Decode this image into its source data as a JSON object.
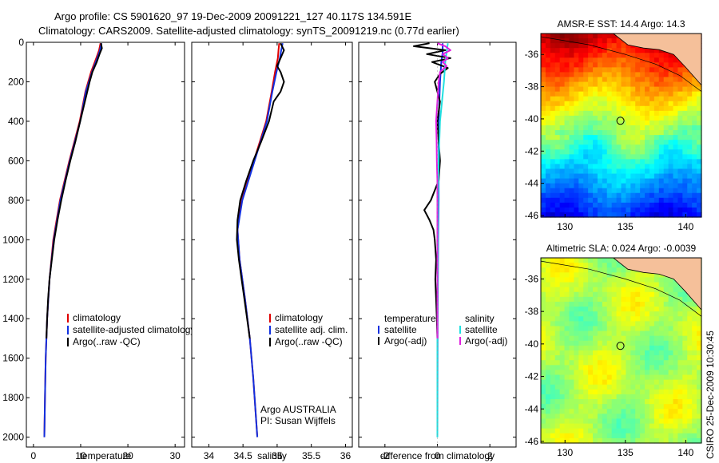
{
  "figure": {
    "title_line1": "Argo profile: CS 5901620_97 19-Dec-2009 20091221_127 40.117S 134.591E",
    "title_line2": "Climatology: CARS2009. Satellite-adjusted climatology: synTS_20091219.nc (0.77d earlier)",
    "side_label": "CSIRO 25-Dec-2009 10:30:45"
  },
  "colors": {
    "climatology": "#e00000",
    "satellite": "#1030e0",
    "argo": "#000000",
    "salinity_sat": "#20e0e0",
    "salinity_argo": "#e020e0",
    "land": "#f5c09a",
    "marker": "#000000"
  },
  "chart_data": [
    {
      "id": "temperature",
      "type": "line",
      "xlabel": "temperature",
      "xlim": [
        -1.5,
        32
      ],
      "ylim": [
        0,
        2050
      ],
      "y_inverted": true,
      "xticks": [
        0,
        10,
        20,
        30
      ],
      "yticks": [
        0,
        200,
        400,
        600,
        800,
        1000,
        1200,
        1400,
        1600,
        1800,
        2000
      ],
      "legend": {
        "position": "lower-middle",
        "entries": [
          "climatology",
          "satellite-adjusted climatology",
          "Argo(..raw -QC)"
        ],
        "colors": [
          "#e00000",
          "#1030e0",
          "#000000"
        ]
      },
      "series": [
        {
          "name": "climatology",
          "color": "#e00000",
          "depth": [
            5,
            40,
            80,
            150,
            250,
            400,
            600,
            800,
            1000,
            1200,
            1400,
            1600,
            1800,
            2000
          ],
          "values": [
            14.2,
            13.9,
            13.3,
            12.2,
            11.0,
            9.8,
            7.6,
            5.6,
            4.2,
            3.4,
            2.9,
            2.6,
            2.45,
            2.3
          ]
        },
        {
          "name": "satellite-adjusted climatology",
          "color": "#1030e0",
          "depth": [
            5,
            40,
            80,
            150,
            250,
            400,
            600,
            800,
            1000,
            1200,
            1400,
            1600,
            1800,
            2000
          ],
          "values": [
            14.4,
            14.1,
            13.5,
            12.4,
            11.1,
            9.9,
            7.7,
            5.7,
            4.3,
            3.4,
            2.9,
            2.6,
            2.45,
            2.3
          ]
        },
        {
          "name": "Argo(..raw -QC)",
          "color": "#000000",
          "depth": [
            5,
            30,
            60,
            100,
            150,
            200,
            300,
            400,
            500,
            600,
            700,
            800,
            900,
            1000,
            1100,
            1200,
            1300,
            1400,
            1500
          ],
          "values": [
            14.3,
            14.5,
            14.0,
            13.4,
            12.5,
            11.9,
            10.9,
            9.9,
            8.9,
            7.8,
            6.8,
            5.9,
            5.1,
            4.4,
            3.9,
            3.4,
            3.1,
            2.9,
            2.75
          ]
        }
      ]
    },
    {
      "id": "salinity",
      "type": "line",
      "xlabel": "salinity",
      "xlim": [
        33.75,
        36.1
      ],
      "ylim": [
        0,
        2050
      ],
      "y_inverted": true,
      "xticks": [
        34,
        34.5,
        35,
        35.5,
        36
      ],
      "xticklabels": [
        "34",
        "34.5",
        "35",
        "35.5",
        "36"
      ],
      "legend": {
        "position": "lower-middle",
        "entries": [
          "climatology",
          "satellite adj. clim.",
          "Argo(..raw -QC)"
        ],
        "colors": [
          "#e00000",
          "#1030e0",
          "#000000"
        ]
      },
      "annotation": [
        "Argo AUSTRALIA",
        "PI: Susan Wijffels"
      ],
      "series": [
        {
          "name": "climatology",
          "color": "#e00000",
          "depth": [
            5,
            40,
            80,
            150,
            250,
            400,
            600,
            800,
            950,
            1100,
            1300,
            1500,
            1700,
            1900,
            2000
          ],
          "values": [
            35.03,
            35.02,
            35.01,
            34.97,
            34.92,
            34.84,
            34.66,
            34.48,
            34.42,
            34.45,
            34.53,
            34.6,
            34.65,
            34.69,
            34.71
          ]
        },
        {
          "name": "satellite adj. clim.",
          "color": "#1030e0",
          "depth": [
            5,
            40,
            80,
            150,
            250,
            400,
            600,
            800,
            950,
            1100,
            1300,
            1500,
            1700,
            1900,
            2000
          ],
          "values": [
            35.08,
            35.06,
            35.04,
            34.99,
            34.93,
            34.85,
            34.67,
            34.49,
            34.42,
            34.45,
            34.53,
            34.6,
            34.65,
            34.69,
            34.71
          ]
        },
        {
          "name": "Argo(..raw -QC)",
          "color": "#000000",
          "depth": [
            5,
            40,
            80,
            120,
            150,
            200,
            250,
            300,
            400,
            500,
            600,
            700,
            800,
            900,
            1000,
            1100,
            1200,
            1300,
            1400,
            1500
          ],
          "values": [
            35.05,
            35.1,
            35.05,
            35.0,
            35.05,
            35.1,
            35.05,
            34.95,
            34.88,
            34.77,
            34.65,
            34.55,
            34.46,
            34.42,
            34.41,
            34.44,
            34.48,
            34.52,
            34.56,
            34.6
          ]
        }
      ]
    },
    {
      "id": "difference",
      "type": "line",
      "xlabel": "difference from climatology",
      "xlim": [
        -3,
        3
      ],
      "ylim": [
        0,
        2050
      ],
      "y_inverted": true,
      "xticks": [
        -2,
        0,
        2
      ],
      "legend": {
        "position": "lower-middle",
        "headers": [
          "temperature",
          "salinity"
        ],
        "temperature_entries": [
          "satellite",
          "Argo(-adj)"
        ],
        "temperature_colors": [
          "#1030e0",
          "#000000"
        ],
        "salinity_entries": [
          "satellite",
          "Argo(-adj)"
        ],
        "salinity_colors": [
          "#20e0e0",
          "#e020e0"
        ]
      },
      "series": [
        {
          "name": "temperature satellite",
          "color": "#1030e0",
          "depth": [
            5,
            50,
            100,
            200,
            400,
            600,
            800,
            1000,
            1400,
            2000
          ],
          "values": [
            0.2,
            0.2,
            0.15,
            0.1,
            0.05,
            0.05,
            0.05,
            0.03,
            0.01,
            0.0
          ]
        },
        {
          "name": "temperature Argo(-adj)",
          "color": "#000000",
          "depth": [
            5,
            20,
            40,
            60,
            80,
            100,
            130,
            160,
            200,
            300,
            400,
            500,
            600,
            700,
            750,
            800,
            850,
            900,
            950,
            1000,
            1100,
            1200,
            1300,
            1400,
            1500
          ],
          "values": [
            -0.3,
            -0.9,
            0.3,
            -0.4,
            0.5,
            -0.2,
            0.4,
            0.1,
            -0.1,
            0.1,
            0.0,
            0.05,
            0.1,
            0.05,
            -0.1,
            -0.25,
            -0.5,
            -0.3,
            -0.15,
            -0.1,
            -0.05,
            -0.08,
            -0.05,
            -0.02,
            0.0
          ]
        },
        {
          "name": "salinity satellite",
          "color": "#20e0e0",
          "depth": [
            5,
            50,
            100,
            200,
            400,
            600,
            800,
            1000,
            1500,
            2000
          ],
          "values": [
            0.4,
            0.35,
            0.3,
            0.25,
            0.1,
            0.05,
            0.03,
            0.02,
            0.0,
            0.0
          ]
        },
        {
          "name": "salinity Argo(-adj)",
          "color": "#e020e0",
          "depth": [
            5,
            20,
            40,
            60,
            80,
            100,
            120,
            150,
            200,
            300,
            400,
            500,
            600,
            700,
            800,
            900,
            1000,
            1200,
            1500
          ],
          "values": [
            0.0,
            0.3,
            0.5,
            0.2,
            0.4,
            0.2,
            0.35,
            0.1,
            0.05,
            0.0,
            -0.05,
            -0.03,
            -0.02,
            0.0,
            0.0,
            0.0,
            0.0,
            0.0,
            0.0
          ]
        }
      ]
    },
    {
      "id": "sst_map",
      "type": "heatmap",
      "title": "AMSR-E SST: 14.4 Argo: 14.3",
      "xlim": [
        128,
        141.3
      ],
      "ylim": [
        -46.1,
        -34.7
      ],
      "xticks": [
        130,
        135,
        140
      ],
      "yticks": [
        -36,
        -38,
        -40,
        -42,
        -44,
        -46
      ],
      "marker": {
        "lon": 134.591,
        "lat": -40.117
      },
      "colormap": "jet"
    },
    {
      "id": "sla_map",
      "type": "heatmap",
      "title": "Altimetric SLA: 0.024 Argo: -0.0039",
      "xlim": [
        128,
        141.3
      ],
      "ylim": [
        -46.1,
        -34.7
      ],
      "xticks": [
        130,
        135,
        140
      ],
      "yticks": [
        -36,
        -38,
        -40,
        -42,
        -44,
        -46
      ],
      "marker": {
        "lon": 134.591,
        "lat": -40.117
      },
      "colormap": "jet"
    }
  ]
}
